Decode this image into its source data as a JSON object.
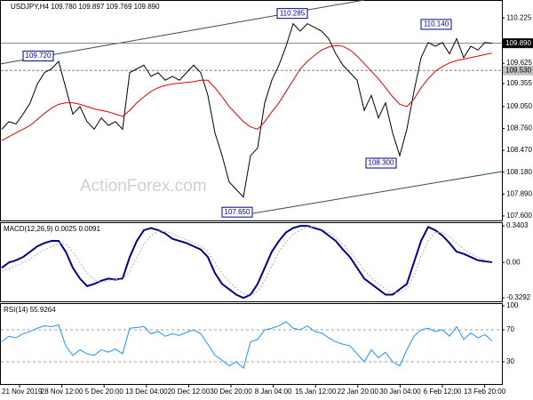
{
  "chart_data": [
    {
      "type": "line",
      "title": "USDJPY,H4  109.780 109.897 109.769 109.890",
      "watermark": "ActionForex.com",
      "ylim": [
        107.54,
        110.44
      ],
      "yticks": [
        110.225,
        109.625,
        109.355,
        {
          "value": 109.05,
          "label": "109.050"
        },
        {
          "value": 108.76,
          "label": "108.760"
        },
        {
          "value": 108.47,
          "label": "108.470"
        },
        {
          "value": 108.18,
          "label": "108.180"
        },
        {
          "value": 107.89,
          "label": "107.890"
        },
        {
          "value": 107.6,
          "label": "107.600"
        }
      ],
      "price_lines": [
        {
          "value": 109.89,
          "label": "109.890"
        },
        {
          "value": 109.53,
          "label": "109.530"
        }
      ],
      "annotations": [
        {
          "value": 109.72,
          "label": "109.720"
        },
        {
          "value": 110.285,
          "label": "110.285"
        },
        {
          "value": 110.14,
          "label": "110.140"
        },
        {
          "value": 108.3,
          "label": "108.300"
        },
        {
          "value": 107.65,
          "label": "107.650"
        }
      ],
      "series": [
        {
          "color": "#000000",
          "values": [
            108.75,
            108.85,
            108.82,
            108.95,
            109.1,
            109.35,
            109.5,
            109.55,
            109.65,
            109.3,
            108.95,
            109.05,
            108.85,
            108.75,
            108.9,
            108.8,
            108.85,
            108.75,
            109.5,
            109.55,
            109.6,
            109.45,
            109.5,
            109.4,
            109.45,
            109.4,
            109.5,
            109.6,
            109.5,
            109.2,
            108.7,
            108.4,
            108.05,
            107.95,
            107.85,
            108.4,
            108.5,
            109.1,
            109.4,
            109.6,
            109.85,
            110.15,
            110.05,
            110.15,
            110.1,
            110.05,
            109.95,
            109.75,
            109.6,
            109.5,
            109.4,
            109.0,
            109.2,
            108.9,
            109.1,
            108.7,
            108.4,
            108.75,
            109.25,
            109.7,
            109.9,
            109.85,
            109.9,
            109.75,
            109.95,
            109.7,
            109.85,
            109.8,
            109.9,
            109.89
          ]
        },
        {
          "color": "#e00000",
          "values": [
            108.6,
            108.65,
            108.7,
            108.75,
            108.8,
            108.88,
            108.96,
            109.03,
            109.08,
            109.1,
            109.1,
            109.08,
            109.05,
            109.02,
            109.0,
            108.98,
            108.95,
            108.92,
            109.0,
            109.1,
            109.18,
            109.25,
            109.3,
            109.33,
            109.35,
            109.36,
            109.37,
            109.38,
            109.4,
            109.4,
            109.3,
            109.18,
            109.05,
            108.95,
            108.85,
            108.78,
            108.75,
            108.85,
            108.98,
            109.1,
            109.25,
            109.4,
            109.55,
            109.65,
            109.73,
            109.8,
            109.84,
            109.86,
            109.85,
            109.8,
            109.72,
            109.62,
            109.52,
            109.42,
            109.3,
            109.18,
            109.08,
            109.05,
            109.15,
            109.3,
            109.42,
            109.52,
            109.58,
            109.63,
            109.66,
            109.68,
            109.7,
            109.72,
            109.74,
            109.76
          ]
        }
      ]
    },
    {
      "type": "line",
      "title": "MACD(12,26,9) 0.0025 0.0091",
      "ylim": [
        -0.37,
        0.374
      ],
      "yticks": [
        0.3403,
        {
          "value": 0,
          "label": "0.00"
        },
        -0.3292
      ],
      "series": [
        {
          "color": "#00008b",
          "values": [
            -0.05,
            0.0,
            0.02,
            0.05,
            0.1,
            0.15,
            0.18,
            0.2,
            0.2,
            0.1,
            -0.05,
            -0.15,
            -0.22,
            -0.2,
            -0.17,
            -0.15,
            -0.16,
            -0.15,
            0.05,
            0.2,
            0.3,
            0.32,
            0.3,
            0.27,
            0.22,
            0.2,
            0.18,
            0.15,
            0.12,
            0.05,
            -0.1,
            -0.2,
            -0.25,
            -0.3,
            -0.33,
            -0.3,
            -0.2,
            -0.05,
            0.1,
            0.2,
            0.28,
            0.32,
            0.34,
            0.34,
            0.32,
            0.3,
            0.25,
            0.2,
            0.12,
            0.05,
            -0.05,
            -0.15,
            -0.2,
            -0.25,
            -0.3,
            -0.3,
            -0.25,
            -0.2,
            0.0,
            0.2,
            0.33,
            0.3,
            0.25,
            0.18,
            0.1,
            0.08,
            0.05,
            0.02,
            0.01,
            0.0025
          ]
        },
        {
          "color": "#b0b0b0",
          "values": [
            -0.08,
            -0.06,
            -0.03,
            0.0,
            0.03,
            0.08,
            0.12,
            0.15,
            0.18,
            0.17,
            0.1,
            0.0,
            -0.1,
            -0.16,
            -0.18,
            -0.17,
            -0.16,
            -0.16,
            -0.08,
            0.05,
            0.17,
            0.25,
            0.29,
            0.29,
            0.27,
            0.24,
            0.21,
            0.18,
            0.15,
            0.1,
            0.0,
            -0.1,
            -0.18,
            -0.24,
            -0.29,
            -0.31,
            -0.27,
            -0.17,
            -0.03,
            0.1,
            0.19,
            0.26,
            0.3,
            0.33,
            0.33,
            0.31,
            0.28,
            0.23,
            0.17,
            0.1,
            0.02,
            -0.07,
            -0.14,
            -0.2,
            -0.25,
            -0.28,
            -0.28,
            -0.24,
            -0.12,
            0.06,
            0.2,
            0.28,
            0.28,
            0.24,
            0.18,
            0.12,
            0.08,
            0.05,
            0.02,
            0.0091
          ]
        }
      ]
    },
    {
      "type": "line",
      "title": "RSI(14) 55.9264",
      "ylim": [
        0,
        104.5
      ],
      "yticks": [
        100,
        70,
        30
      ],
      "levels": [
        70,
        30
      ],
      "series": [
        {
          "color": "#1e90ff",
          "values": [
            55,
            62,
            60,
            65,
            68,
            72,
            75,
            74,
            76,
            50,
            38,
            45,
            40,
            38,
            45,
            42,
            46,
            40,
            72,
            73,
            74,
            65,
            68,
            62,
            65,
            63,
            67,
            70,
            65,
            52,
            38,
            32,
            25,
            30,
            22,
            55,
            58,
            70,
            72,
            75,
            80,
            72,
            70,
            75,
            68,
            66,
            60,
            55,
            52,
            50,
            40,
            30,
            45,
            35,
            42,
            30,
            25,
            45,
            62,
            70,
            72,
            68,
            70,
            62,
            74,
            58,
            66,
            60,
            64,
            55.9264
          ]
        }
      ]
    }
  ],
  "time_labels": [
    "21 Nov 2019",
    "28 Nov 12:00",
    "5 Dec 20:00",
    "13 Dec 04:00",
    "20 Dec 12:00",
    "30 Dec 20:00",
    "8 Jan 04:00",
    "15 Jan 12:00",
    "22 Jan 20:00",
    "30 Jan 04:00",
    "6 Feb 12:00",
    "13 Feb 20:00"
  ]
}
